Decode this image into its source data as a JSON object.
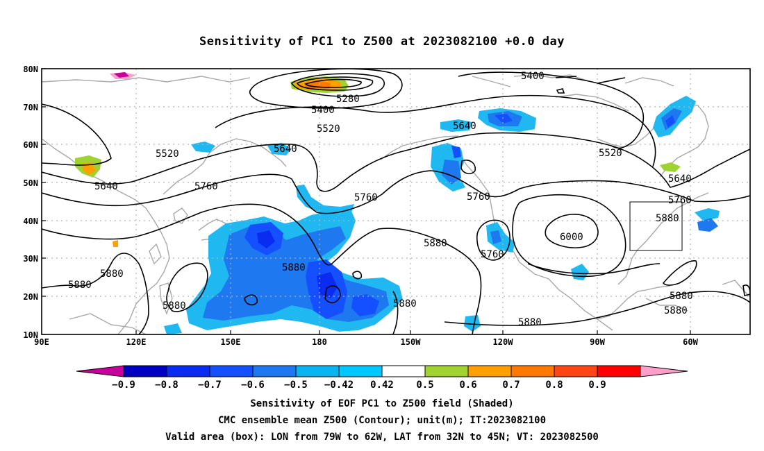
{
  "title": "Sensitivity of PC1 to Z500 at 2023082100 +0.0 day",
  "lat_labels": [
    "80N",
    "70N",
    "60N",
    "50N",
    "40N",
    "30N",
    "20N",
    "10N"
  ],
  "lon_labels": [
    "90E",
    "120E",
    "150E",
    "180",
    "150W",
    "120W",
    "90W",
    "60W"
  ],
  "contour_labels": [
    {
      "text": "5400"
    },
    {
      "text": "5280"
    },
    {
      "text": "5400"
    },
    {
      "text": "5520"
    },
    {
      "text": "5520"
    },
    {
      "text": "5640"
    },
    {
      "text": "5640"
    },
    {
      "text": "5640"
    },
    {
      "text": "5760"
    },
    {
      "text": "5760"
    },
    {
      "text": "5760"
    },
    {
      "text": "5520"
    },
    {
      "text": "5640"
    },
    {
      "text": "5760"
    },
    {
      "text": "5880"
    },
    {
      "text": "5880"
    },
    {
      "text": "5760"
    },
    {
      "text": "6000"
    },
    {
      "text": "5880"
    },
    {
      "text": "5880"
    },
    {
      "text": "5880"
    },
    {
      "text": "5880"
    },
    {
      "text": "5880"
    },
    {
      "text": "5880"
    },
    {
      "text": "5880"
    },
    {
      "text": "5880"
    }
  ],
  "colorbar": {
    "colors": [
      "#c8009c",
      "#0000c0",
      "#0a2cf0",
      "#1450ff",
      "#1e78f0",
      "#0ab4f0",
      "#00c8ff",
      "#ffffff",
      "#a0d232",
      "#ffa000",
      "#ff7800",
      "#ff4614",
      "#ff0000",
      "#ff9ec8"
    ],
    "labels": [
      "-0.9",
      "-0.8",
      "-0.7",
      "-0.6",
      "-0.5",
      "-0.42",
      "0.42",
      "0.5",
      "0.6",
      "0.7",
      "0.8",
      "0.9"
    ]
  },
  "captions": [
    "Sensitivity of EOF PC1 to Z500 field (Shaded)",
    "CMC ensemble mean Z500 (Contour); unit(m); IT:2023082100",
    "Valid area (box): LON from 79W to 62W, LAT from 32N to 45N; VT: 2023082500"
  ]
}
